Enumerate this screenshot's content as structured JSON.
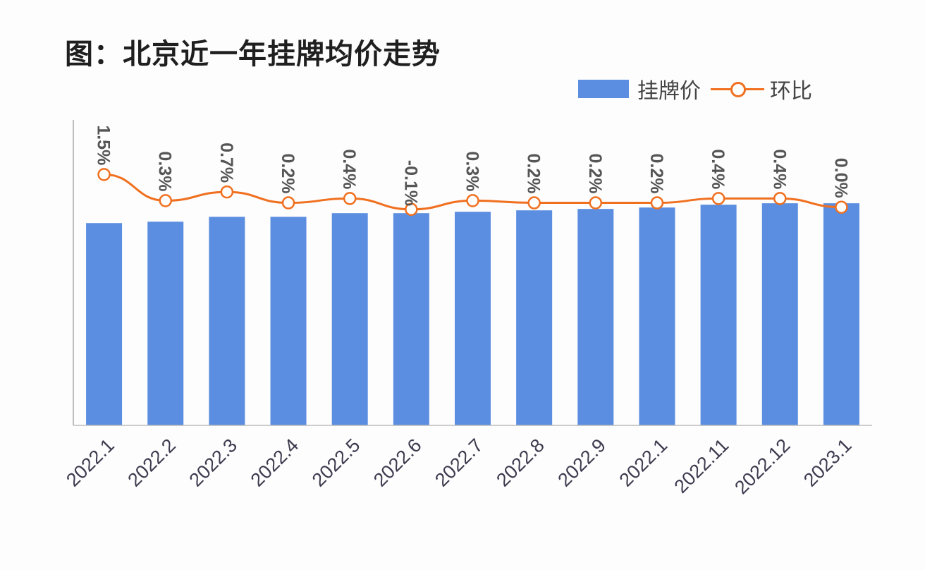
{
  "title": "图：北京近一年挂牌均价走势",
  "legend": {
    "bar": "挂牌价",
    "line": "环比"
  },
  "colors": {
    "bar": "#5b8ee0",
    "line": "#f07020",
    "text": "#444444"
  },
  "chart_data": {
    "type": "bar+line",
    "title": "图：北京近一年挂牌均价走势",
    "categories": [
      "2022.1",
      "2022.2",
      "2022.3",
      "2022.4",
      "2022.5",
      "2022.6",
      "2022.7",
      "2022.8",
      "2022.9",
      "2022.1",
      "2022.11",
      "2022.12",
      "2023.1"
    ],
    "series": [
      {
        "name": "挂牌价",
        "type": "bar",
        "axis": "primary",
        "values": [
          100,
          100.7,
          103.1,
          103.1,
          104.9,
          104.9,
          105.6,
          106.3,
          107.0,
          107.7,
          109.1,
          109.8,
          109.8
        ]
      },
      {
        "name": "环比",
        "type": "line",
        "axis": "secondary",
        "values": [
          1.5,
          0.3,
          0.7,
          0.2,
          0.4,
          -0.1,
          0.3,
          0.2,
          0.2,
          0.2,
          0.4,
          0.4,
          0.0
        ],
        "labels": [
          "1.5%",
          "0.3%",
          "0.7%",
          "0.2%",
          "0.4%",
          "-0.1%",
          "0.3%",
          "0.2%",
          "0.2%",
          "0.2%",
          "0.4%",
          "0.4%",
          "0.0%"
        ]
      }
    ],
    "ylim": [
      0,
      151
    ],
    "y2lim": [
      -10,
      4
    ],
    "y_tick_labels": "none",
    "grid": false,
    "legend_position": "top-right"
  }
}
